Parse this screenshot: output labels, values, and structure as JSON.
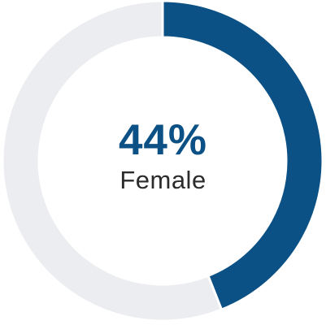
{
  "chart_data": {
    "type": "pie",
    "style": "donut",
    "value_label": "44%",
    "caption": "Female",
    "slices": [
      {
        "label": "Female",
        "value": 44,
        "color": "#0c5185"
      },
      {
        "value": 56,
        "color": "#ecedf0"
      }
    ]
  }
}
